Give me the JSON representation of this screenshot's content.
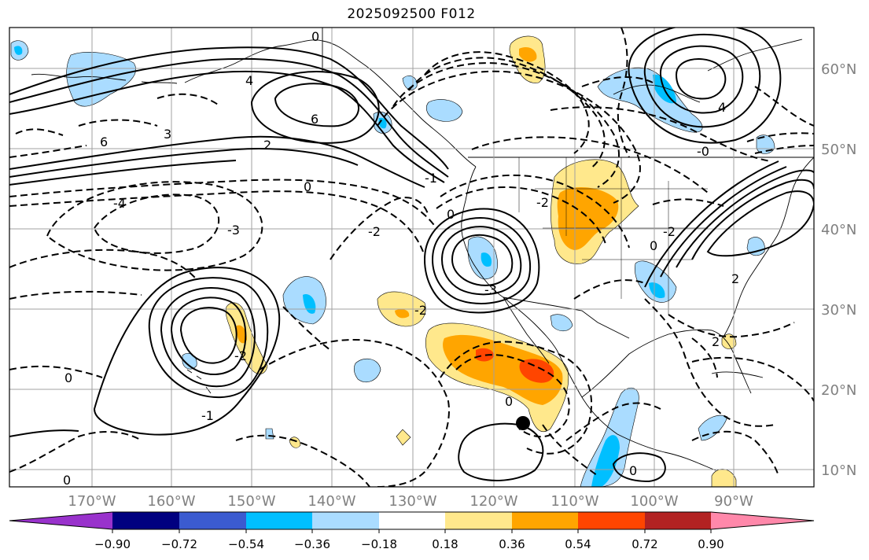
{
  "title": "2025092500 F012",
  "map": {
    "lat_labels": [
      "60°N",
      "50°N",
      "40°N",
      "30°N",
      "20°N",
      "10°N"
    ],
    "lon_labels": [
      "170°W",
      "160°W",
      "150°W",
      "140°W",
      "130°W",
      "120°W",
      "110°W",
      "100°W",
      "90°W"
    ],
    "contour_labels": [
      "0",
      "4",
      "6",
      "2",
      "3",
      "0",
      "-2",
      "-4",
      "6",
      "-3",
      "-2",
      "0",
      "-1",
      "-2",
      "-3",
      "0",
      "0",
      "-2",
      "4",
      "-2",
      "2",
      "0",
      "-1",
      "-0",
      "0",
      "2",
      "0"
    ],
    "colors": {
      "land_border": "#000000",
      "grid": "#a0a0a0",
      "neg_light": "#aadcff",
      "neg_mid": "#00bfff",
      "pos_light": "#ffe88c",
      "pos_mid": "#ffa500",
      "pos_strong": "#ff4500"
    }
  },
  "colorbar": {
    "colors": [
      "#9932cc",
      "#000080",
      "#3b5bd0",
      "#00bfff",
      "#aadcff",
      "#ffffff",
      "#ffe88c",
      "#ffa500",
      "#ff4500",
      "#b22222",
      "#ff88aa"
    ],
    "tick_labels": [
      "−0.90",
      "−0.72",
      "−0.54",
      "−0.36",
      "−0.18",
      "0.18",
      "0.36",
      "0.54",
      "0.72",
      "0.90"
    ]
  }
}
